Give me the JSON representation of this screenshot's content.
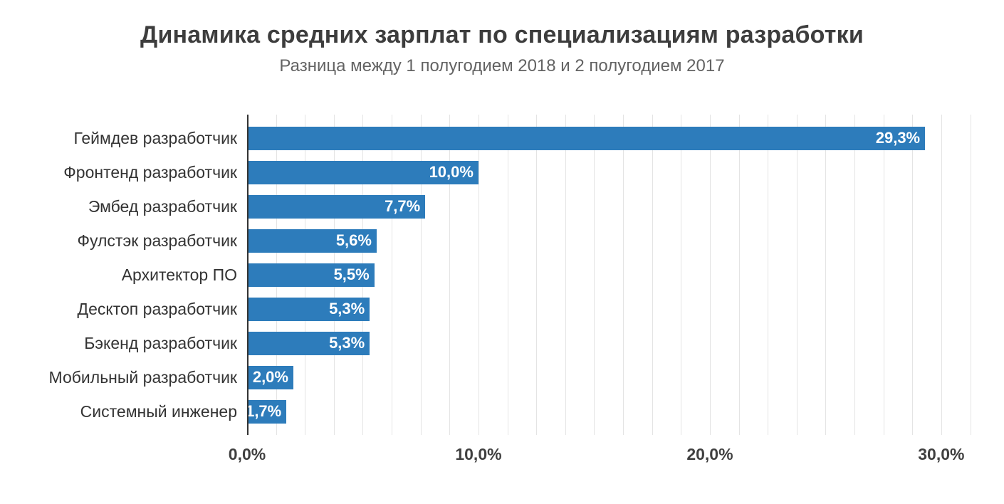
{
  "chart_data": {
    "type": "bar",
    "orientation": "horizontal",
    "title": "Динамика средних зарплат по специализациям разработки",
    "subtitle": "Разница между 1 полугодием 2018 и 2 полугодием 2017",
    "categories": [
      "Геймдев разработчик",
      "Фронтенд разработчик",
      "Эмбед разработчик",
      "Фулстэк разработчик",
      "Архитектор ПО",
      "Десктоп разработчик",
      "Бэкенд разработчик",
      "Мобильный разработчик",
      "Системный инженер"
    ],
    "values": [
      29.3,
      10.0,
      7.7,
      5.6,
      5.5,
      5.3,
      5.3,
      2.0,
      1.7
    ],
    "value_labels": [
      "29,3%",
      "10,0%",
      "7,7%",
      "5,6%",
      "5,5%",
      "5,3%",
      "5,3%",
      "2,0%",
      "1,7%"
    ],
    "bar_color": "#2d7cbb",
    "value_label_color": "#ffffff",
    "legend": "none",
    "grid": "vertical-only",
    "axis": {
      "min": 0,
      "max": 32.25,
      "gridline_step": 1.25,
      "ticks": [
        {
          "value": 0,
          "label": "0,0%"
        },
        {
          "value": 10,
          "label": "10,0%"
        },
        {
          "value": 20,
          "label": "20,0%"
        },
        {
          "value": 30,
          "label": "30,0%"
        }
      ]
    }
  }
}
